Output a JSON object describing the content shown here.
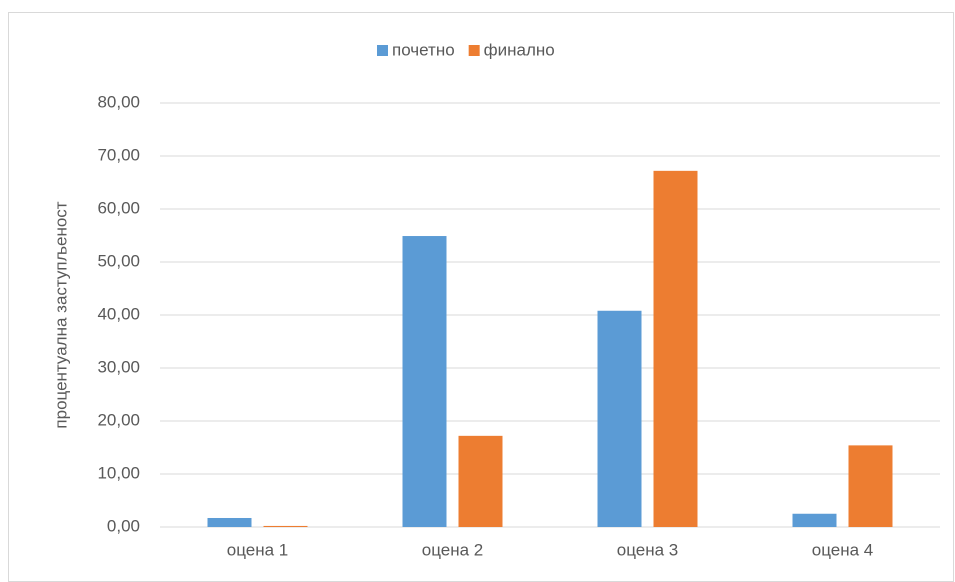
{
  "chart_data": {
    "type": "bar",
    "y_label": "процентуална заступљеност",
    "categories": [
      "оцена 1",
      "оцена 2",
      "оцена 3",
      "оцена 4"
    ],
    "series": [
      {
        "name": "почетно",
        "color": "#5b9bd5",
        "values": [
          1.7,
          54.9,
          40.8,
          2.5
        ]
      },
      {
        "name": "финално",
        "color": "#ed7d31",
        "values": [
          0.2,
          17.2,
          67.2,
          15.4
        ]
      }
    ],
    "ylim": [
      0,
      80
    ],
    "yticks": [
      {
        "value": 0,
        "label": "0,00"
      },
      {
        "value": 10,
        "label": "10,00"
      },
      {
        "value": 20,
        "label": "20,00"
      },
      {
        "value": 30,
        "label": "30,00"
      },
      {
        "value": 40,
        "label": "40,00"
      },
      {
        "value": 50,
        "label": "50,00"
      },
      {
        "value": 60,
        "label": "60,00"
      },
      {
        "value": 70,
        "label": "70,00"
      },
      {
        "value": 80,
        "label": "80,00"
      }
    ],
    "grid": true,
    "legend": "top"
  }
}
